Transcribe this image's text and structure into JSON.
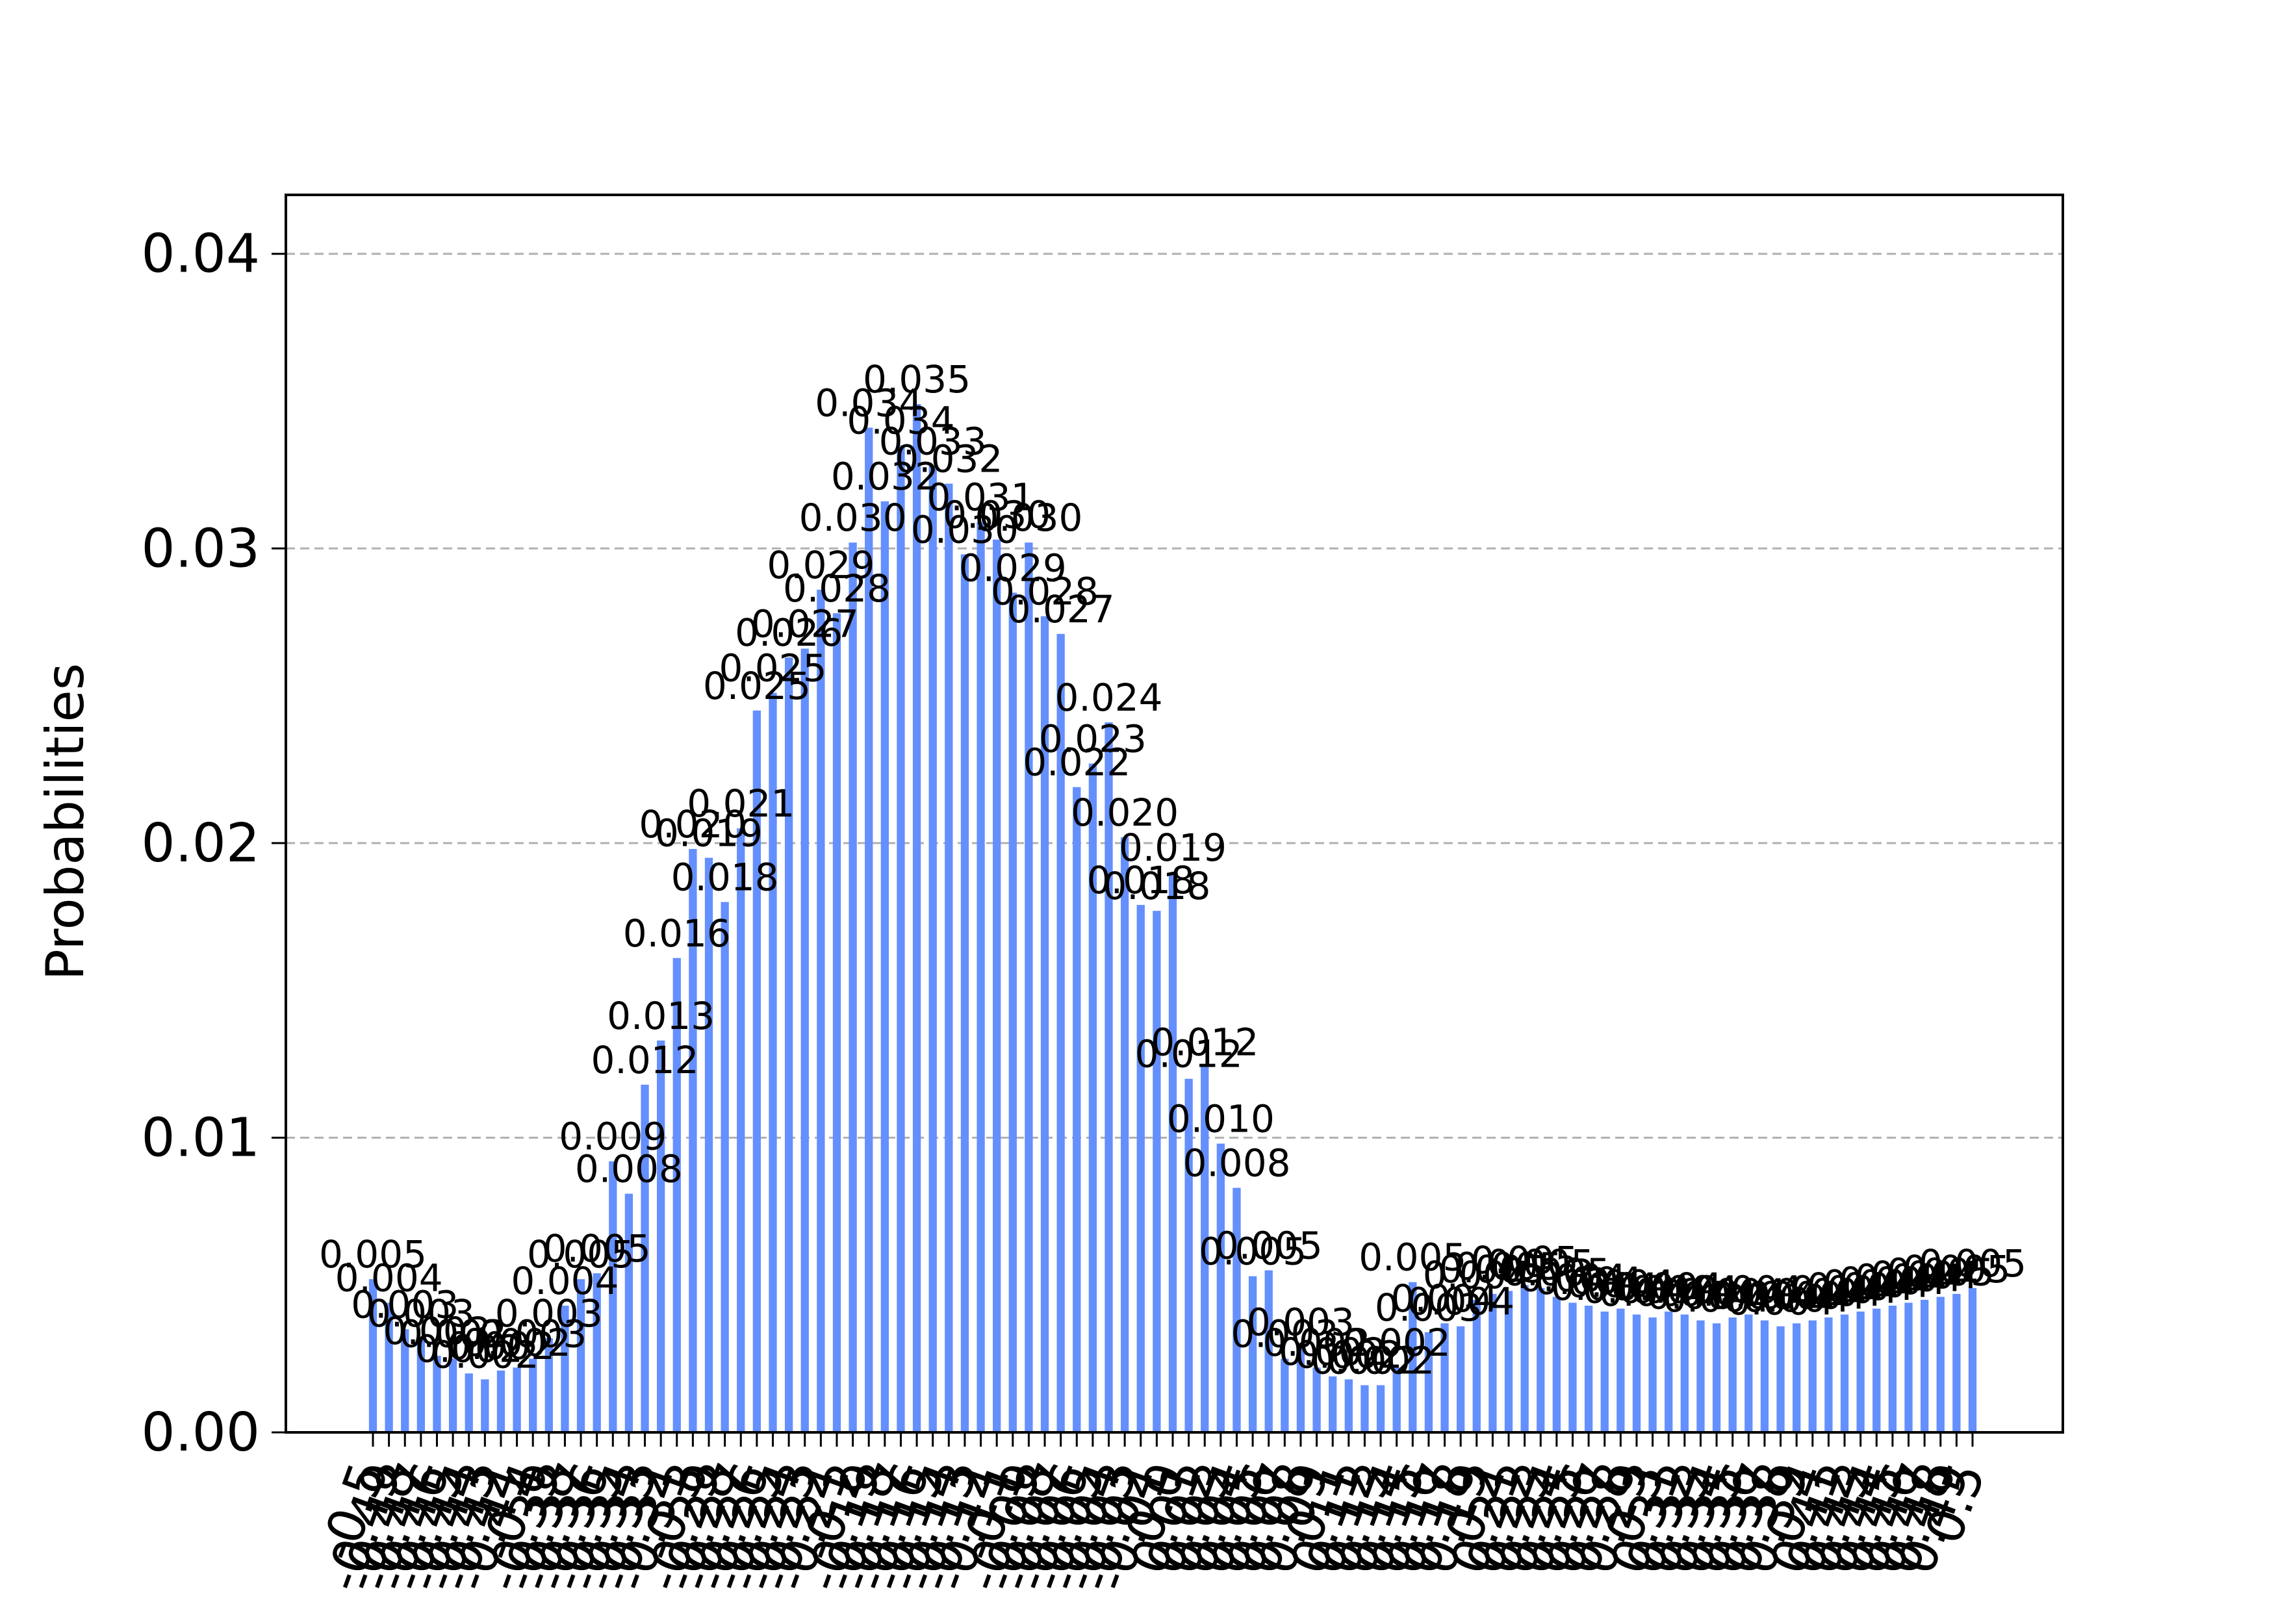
{
  "chart_data": {
    "type": "bar",
    "title": "",
    "xlabel": "",
    "ylabel": "Probabilities",
    "ylim": [
      0,
      0.042
    ],
    "yticks": [
      {
        "value": 0,
        "label": "0.00"
      },
      {
        "value": 0.01,
        "label": "0.01"
      },
      {
        "value": 0.02,
        "label": "0.02"
      },
      {
        "value": 0.03,
        "label": "0.03"
      },
      {
        "value": 0.04,
        "label": "0.04"
      }
    ],
    "grid": "y-dashed",
    "bar_color": "#648fff",
    "categories": [
      "-0.5",
      "-0.49",
      "-0.48",
      "-0.47",
      "-0.46",
      "-0.45",
      "-0.44",
      "-0.43",
      "-0.42",
      "-0.41",
      "-0.4",
      "-0.39",
      "-0.38",
      "-0.37",
      "-0.36",
      "-0.35",
      "-0.34",
      "-0.33",
      "-0.32",
      "-0.31",
      "-0.3",
      "-0.29",
      "-0.28",
      "-0.27",
      "-0.26",
      "-0.25",
      "-0.24",
      "-0.23",
      "-0.22",
      "-0.21",
      "-0.2",
      "-0.19",
      "-0.18",
      "-0.17",
      "-0.16",
      "-0.15",
      "-0.14",
      "-0.13",
      "-0.12",
      "-0.11",
      "-0.1",
      "-0.09",
      "-0.08",
      "-0.07",
      "-0.06",
      "-0.05",
      "-0.04",
      "-0.03",
      "-0.02",
      "-0.01",
      "0.0",
      "0.01",
      "0.02",
      "0.03",
      "0.04",
      "0.05",
      "0.06",
      "0.07",
      "0.08",
      "0.09",
      "0.1",
      "0.11",
      "0.12",
      "0.13",
      "0.14",
      "0.15",
      "0.16",
      "0.17",
      "0.18",
      "0.19",
      "0.2",
      "0.21",
      "0.22",
      "0.23",
      "0.24",
      "0.25",
      "0.26",
      "0.27",
      "0.28",
      "0.29",
      "0.3",
      "0.31",
      "0.32",
      "0.33",
      "0.34",
      "0.35",
      "0.36",
      "0.37",
      "0.38",
      "0.39",
      "0.4",
      "0.41",
      "0.42",
      "0.43",
      "0.44",
      "0.45",
      "0.46",
      "0.47",
      "0.48",
      "0.49",
      "0.5"
    ],
    "values": [
      0.0052,
      0.0044,
      0.0035,
      0.0032,
      0.0026,
      0.0025,
      0.002,
      0.0018,
      0.0021,
      0.0022,
      0.0025,
      0.0032,
      0.0043,
      0.0052,
      0.0054,
      0.0092,
      0.0081,
      0.0118,
      0.0133,
      0.0161,
      0.0198,
      0.0195,
      0.018,
      0.0205,
      0.0245,
      0.0251,
      0.0263,
      0.0266,
      0.0286,
      0.0278,
      0.0302,
      0.0341,
      0.0316,
      0.0335,
      0.0349,
      0.0328,
      0.0322,
      0.0298,
      0.0309,
      0.0303,
      0.0285,
      0.0302,
      0.0277,
      0.0271,
      0.0219,
      0.0227,
      0.0241,
      0.0202,
      0.0179,
      0.0177,
      0.019,
      0.012,
      0.0124,
      0.0098,
      0.0083,
      0.0053,
      0.0055,
      0.0025,
      0.0029,
      0.0022,
      0.0019,
      0.0018,
      0.0016,
      0.0016,
      0.0022,
      0.0051,
      0.0034,
      0.0037,
      0.0036,
      0.0045,
      0.0047,
      0.0048,
      0.005,
      0.0049,
      0.0046,
      0.0044,
      0.0043,
      0.0041,
      0.0042,
      0.004,
      0.0039,
      0.0041,
      0.004,
      0.0038,
      0.0037,
      0.0039,
      0.004,
      0.0038,
      0.0036,
      0.0037,
      0.0038,
      0.0039,
      0.004,
      0.0041,
      0.0042,
      0.0043,
      0.0044,
      0.0045,
      0.0046,
      0.0047,
      0.0049
    ],
    "value_labels": [
      "0.005",
      "0.004",
      "0.003",
      "0.003",
      "0.003",
      "0.002",
      "0.002",
      "0.002",
      "0.002",
      "0.002",
      "0.003",
      "0.003",
      "0.004",
      "0.005",
      "0.005",
      "0.009",
      "0.008",
      "0.012",
      "0.013",
      "0.016",
      "0.020",
      "0.019",
      "0.018",
      "0.021",
      "0.025",
      "0.025",
      "0.026",
      "0.027",
      "0.029",
      "0.028",
      "0.030",
      "0.034",
      "0.032",
      "0.034",
      "0.035",
      "0.033",
      "0.032",
      "0.030",
      "0.031",
      "0.030",
      "0.029",
      "0.030",
      "0.028",
      "0.027",
      "0.022",
      "0.023",
      "0.024",
      "0.020",
      "0.018",
      "0.018",
      "0.019",
      "0.012",
      "0.012",
      "0.010",
      "0.008",
      "0.005",
      "0.005",
      "0.003",
      "0.003",
      "0.002",
      "0.002",
      "0.002",
      "0.002",
      "0.002",
      "0.002",
      "0.005",
      "0.003",
      "0.004",
      "0.004",
      "0.004",
      "0.005",
      "0.005",
      "0.005",
      "0.005",
      "0.005",
      "0.004",
      "0.004",
      "0.004",
      "0.004",
      "0.004",
      "0.004",
      "0.004",
      "0.004",
      "0.004",
      "0.004",
      "0.004",
      "0.004",
      "0.004",
      "0.004",
      "0.004",
      "0.004",
      "0.004",
      "0.004",
      "0.004",
      "0.004",
      "0.004",
      "0.004",
      "0.004",
      "0.005",
      "0.005",
      "0.005"
    ]
  }
}
